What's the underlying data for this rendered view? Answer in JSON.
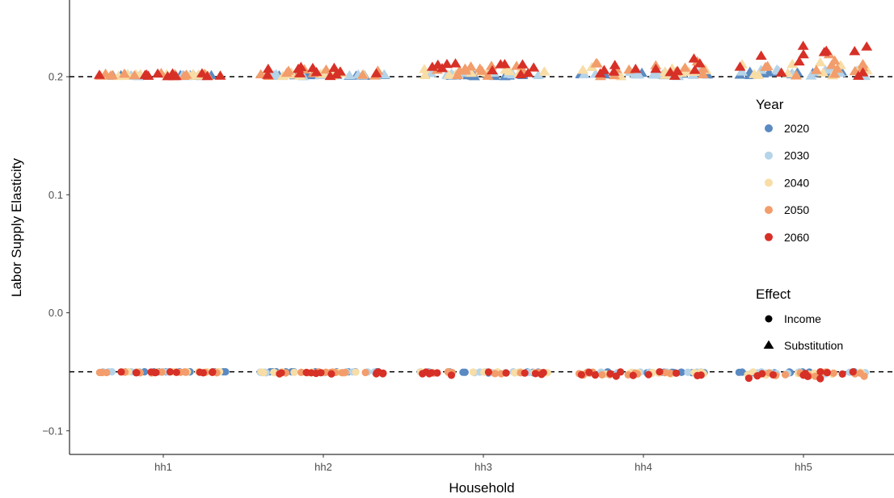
{
  "chart_data": {
    "type": "scatter",
    "xlabel": "Household",
    "ylabel": "Labor Supply Elasticity",
    "categories": [
      "hh1",
      "hh2",
      "hh3",
      "hh4",
      "hh5"
    ],
    "ylim": [
      -0.12,
      0.265
    ],
    "yticks": [
      -0.1,
      0.0,
      0.1,
      0.2
    ],
    "ytick_labels": [
      "−0.1",
      "0.0",
      "0.1",
      "0.2"
    ],
    "reference_lines": [
      0.2,
      -0.05
    ],
    "grid": false,
    "legend_placement": "right",
    "color_legend": {
      "title": "Year",
      "entries": [
        {
          "label": "2020",
          "color": "#5b8ac2"
        },
        {
          "label": "2030",
          "color": "#b5d4e9"
        },
        {
          "label": "2040",
          "color": "#f8dda6"
        },
        {
          "label": "2050",
          "color": "#f29d6b"
        },
        {
          "label": "2060",
          "color": "#d73027"
        }
      ]
    },
    "shape_legend": {
      "title": "Effect",
      "entries": [
        {
          "label": "Income",
          "shape": "circle"
        },
        {
          "label": "Substitution",
          "shape": "triangle"
        }
      ]
    },
    "series": [
      {
        "year": "2020",
        "effect": "Substitution",
        "max_deviation": [
          0.001,
          0.002,
          0.002,
          0.003,
          0.004
        ]
      },
      {
        "year": "2030",
        "effect": "Substitution",
        "max_deviation": [
          0.001,
          0.002,
          0.003,
          0.004,
          0.006
        ]
      },
      {
        "year": "2040",
        "effect": "Substitution",
        "max_deviation": [
          0.002,
          0.004,
          0.006,
          0.008,
          0.012
        ]
      },
      {
        "year": "2050",
        "effect": "Substitution",
        "max_deviation": [
          0.003,
          0.006,
          0.01,
          0.013,
          0.02
        ]
      },
      {
        "year": "2060",
        "effect": "Substitution",
        "max_deviation": [
          0.003,
          0.008,
          0.012,
          0.015,
          0.026
        ]
      },
      {
        "year": "2020",
        "effect": "Income",
        "max_deviation": [
          0.0,
          0.0,
          0.001,
          0.001,
          0.001
        ]
      },
      {
        "year": "2030",
        "effect": "Income",
        "max_deviation": [
          0.0,
          0.001,
          0.001,
          0.001,
          0.002
        ]
      },
      {
        "year": "2040",
        "effect": "Income",
        "max_deviation": [
          0.0,
          0.001,
          0.001,
          0.002,
          0.003
        ]
      },
      {
        "year": "2050",
        "effect": "Income",
        "max_deviation": [
          0.001,
          0.001,
          0.002,
          0.003,
          0.004
        ]
      },
      {
        "year": "2060",
        "effect": "Income",
        "max_deviation": [
          0.001,
          0.002,
          0.003,
          0.004,
          0.006
        ]
      }
    ],
    "base_values": {
      "Substitution": 0.2,
      "Income": -0.05
    }
  }
}
